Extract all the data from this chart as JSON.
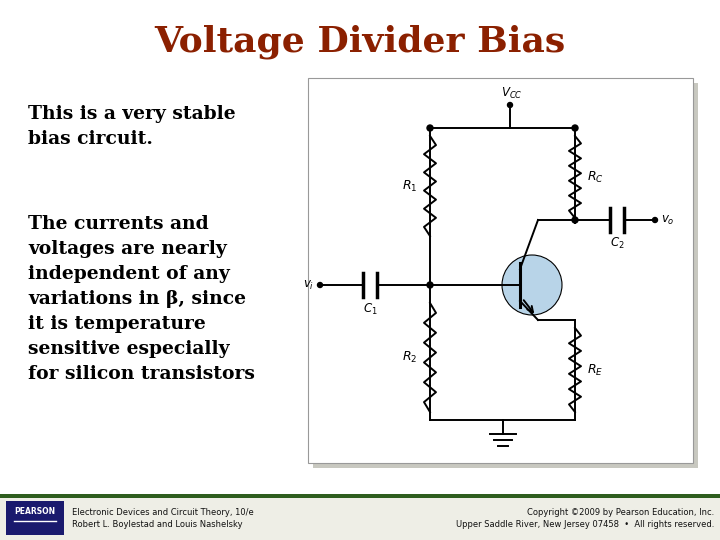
{
  "title": "Voltage Divider Bias",
  "title_color": "#8B2000",
  "title_fontsize": 26,
  "bg_color": "#FFFFFF",
  "text1": "This is a very stable\nbias circuit.",
  "text2": "The currents and\nvoltages are nearly\nindependent of any\nvariations in β, since\nit is temperature\nsensitive especially\nfor silicon transistors",
  "text_fontsize": 13.5,
  "footer_left_line1": "Electronic Devices and Circuit Theory, 10/e",
  "footer_left_line2": "Robert L. Boylestad and Louis Nashelsky",
  "footer_right_line1": "Copyright ©2009 by Pearson Education, Inc.",
  "footer_right_line2": "Upper Saddle River, New Jersey 07458  •  All rights reserved.",
  "footer_bar_color": "#2E5E1E",
  "footer_bg_color": "#EEEEE6",
  "pearson_box_color": "#1A1A6E",
  "circuit_shadow_color": "#C8C8C0",
  "circuit_border_color": "#999999"
}
